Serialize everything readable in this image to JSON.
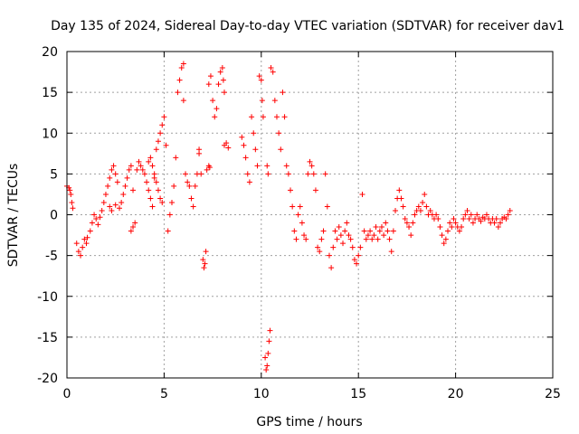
{
  "chart_data": {
    "type": "scatter",
    "title": "Day 135 of 2024, Sidereal Day-to-day VTEC variation (SDTVAR) for receiver dav1",
    "xlabel": "GPS time / hours",
    "ylabel": "SDTVAR / TECUs",
    "xlim": [
      0,
      25
    ],
    "ylim": [
      -20,
      20
    ],
    "xticks": [
      0,
      5,
      10,
      15,
      20,
      25
    ],
    "yticks": [
      -20,
      -15,
      -10,
      -5,
      0,
      5,
      10,
      15,
      20
    ],
    "grid": true,
    "marker": "+",
    "color": "#ff0000",
    "series": [
      {
        "name": "SDTVAR",
        "points": [
          [
            0.0,
            3.5
          ],
          [
            0.1,
            3.3
          ],
          [
            0.15,
            3.0
          ],
          [
            0.2,
            2.5
          ],
          [
            0.25,
            1.5
          ],
          [
            0.3,
            0.8
          ],
          [
            0.5,
            -3.5
          ],
          [
            0.6,
            -4.5
          ],
          [
            0.7,
            -5.0
          ],
          [
            0.8,
            -4.0
          ],
          [
            0.9,
            -3.0
          ],
          [
            1.0,
            -3.5
          ],
          [
            1.05,
            -2.8
          ],
          [
            1.2,
            -2.0
          ],
          [
            1.3,
            -1.0
          ],
          [
            1.4,
            0.0
          ],
          [
            1.5,
            -0.5
          ],
          [
            1.6,
            -1.2
          ],
          [
            1.7,
            -0.3
          ],
          [
            1.8,
            0.5
          ],
          [
            1.9,
            1.5
          ],
          [
            2.0,
            2.5
          ],
          [
            2.1,
            3.5
          ],
          [
            2.2,
            4.5
          ],
          [
            2.3,
            5.5
          ],
          [
            2.4,
            6.0
          ],
          [
            2.5,
            5.0
          ],
          [
            2.6,
            4.0
          ],
          [
            2.2,
            1.0
          ],
          [
            2.3,
            0.5
          ],
          [
            2.5,
            1.2
          ],
          [
            2.7,
            0.8
          ],
          [
            2.8,
            1.5
          ],
          [
            2.9,
            2.5
          ],
          [
            3.0,
            3.5
          ],
          [
            3.1,
            4.5
          ],
          [
            3.2,
            5.5
          ],
          [
            3.3,
            6.0
          ],
          [
            3.4,
            3.0
          ],
          [
            3.3,
            -2.0
          ],
          [
            3.4,
            -1.5
          ],
          [
            3.5,
            -1.0
          ],
          [
            3.6,
            5.5
          ],
          [
            3.7,
            6.5
          ],
          [
            3.8,
            6.0
          ],
          [
            3.9,
            5.5
          ],
          [
            4.0,
            5.0
          ],
          [
            4.1,
            4.0
          ],
          [
            4.2,
            6.5
          ],
          [
            4.3,
            7.0
          ],
          [
            4.4,
            6.0
          ],
          [
            4.5,
            5.0
          ],
          [
            4.6,
            4.0
          ],
          [
            4.7,
            3.0
          ],
          [
            4.8,
            2.0
          ],
          [
            4.9,
            1.5
          ],
          [
            4.2,
            3.0
          ],
          [
            4.3,
            2.0
          ],
          [
            4.4,
            1.0
          ],
          [
            4.5,
            4.5
          ],
          [
            4.6,
            8.0
          ],
          [
            4.7,
            9.0
          ],
          [
            4.8,
            10.0
          ],
          [
            4.9,
            11.0
          ],
          [
            5.0,
            12.0
          ],
          [
            5.1,
            8.5
          ],
          [
            5.2,
            -2.0
          ],
          [
            5.3,
            0.0
          ],
          [
            5.4,
            1.5
          ],
          [
            5.5,
            3.5
          ],
          [
            5.6,
            7.0
          ],
          [
            5.7,
            15.0
          ],
          [
            5.8,
            16.5
          ],
          [
            5.9,
            18.0
          ],
          [
            6.0,
            18.5
          ],
          [
            6.0,
            14.0
          ],
          [
            6.1,
            5.0
          ],
          [
            6.2,
            4.0
          ],
          [
            6.3,
            3.5
          ],
          [
            6.4,
            2.0
          ],
          [
            6.5,
            1.0
          ],
          [
            6.6,
            3.5
          ],
          [
            6.7,
            5.0
          ],
          [
            6.8,
            7.5
          ],
          [
            6.8,
            8.0
          ],
          [
            6.9,
            5.0
          ],
          [
            7.0,
            -5.5
          ],
          [
            7.05,
            -6.5
          ],
          [
            7.1,
            -6.0
          ],
          [
            7.15,
            -4.5
          ],
          [
            7.2,
            5.5
          ],
          [
            7.3,
            6.0
          ],
          [
            7.35,
            5.8
          ],
          [
            7.3,
            16.0
          ],
          [
            7.4,
            17.0
          ],
          [
            7.5,
            14.0
          ],
          [
            7.6,
            12.0
          ],
          [
            7.7,
            13.0
          ],
          [
            7.8,
            16.0
          ],
          [
            7.9,
            17.5
          ],
          [
            8.0,
            18.0
          ],
          [
            8.05,
            16.5
          ],
          [
            8.1,
            15.0
          ],
          [
            8.1,
            8.5
          ],
          [
            8.2,
            8.8
          ],
          [
            8.3,
            8.2
          ],
          [
            9.0,
            9.5
          ],
          [
            9.1,
            8.5
          ],
          [
            9.2,
            7.0
          ],
          [
            9.3,
            5.0
          ],
          [
            9.4,
            4.0
          ],
          [
            9.5,
            12.0
          ],
          [
            9.6,
            10.0
          ],
          [
            9.7,
            8.0
          ],
          [
            9.8,
            6.0
          ],
          [
            9.9,
            17.0
          ],
          [
            10.0,
            16.5
          ],
          [
            10.05,
            14.0
          ],
          [
            10.1,
            12.0
          ],
          [
            10.2,
            -17.5
          ],
          [
            10.25,
            -19.0
          ],
          [
            10.3,
            -18.5
          ],
          [
            10.35,
            -17.0
          ],
          [
            10.4,
            -15.5
          ],
          [
            10.45,
            -14.2
          ],
          [
            10.3,
            6.0
          ],
          [
            10.35,
            5.0
          ],
          [
            10.5,
            18.0
          ],
          [
            10.6,
            17.5
          ],
          [
            10.7,
            14.0
          ],
          [
            10.8,
            12.0
          ],
          [
            10.9,
            10.0
          ],
          [
            11.0,
            8.0
          ],
          [
            11.1,
            15.0
          ],
          [
            11.2,
            12.0
          ],
          [
            11.3,
            6.0
          ],
          [
            11.4,
            5.0
          ],
          [
            11.5,
            3.0
          ],
          [
            11.6,
            1.0
          ],
          [
            11.7,
            -2.0
          ],
          [
            11.8,
            -3.0
          ],
          [
            11.9,
            0.0
          ],
          [
            12.0,
            1.0
          ],
          [
            12.1,
            -1.0
          ],
          [
            12.2,
            -2.5
          ],
          [
            12.3,
            -3.0
          ],
          [
            12.4,
            5.0
          ],
          [
            12.5,
            6.5
          ],
          [
            12.6,
            6.0
          ],
          [
            12.7,
            5.0
          ],
          [
            12.8,
            3.0
          ],
          [
            12.9,
            -4.0
          ],
          [
            13.0,
            -4.5
          ],
          [
            13.1,
            -3.0
          ],
          [
            13.2,
            -2.0
          ],
          [
            13.3,
            5.0
          ],
          [
            13.4,
            1.0
          ],
          [
            13.5,
            -5.0
          ],
          [
            13.6,
            -6.5
          ],
          [
            13.7,
            -4.0
          ],
          [
            13.8,
            -2.0
          ],
          [
            13.9,
            -3.0
          ],
          [
            14.0,
            -1.5
          ],
          [
            14.1,
            -2.5
          ],
          [
            14.2,
            -3.5
          ],
          [
            14.3,
            -2.0
          ],
          [
            14.4,
            -1.0
          ],
          [
            14.5,
            -2.5
          ],
          [
            14.6,
            -3.0
          ],
          [
            14.7,
            -4.0
          ],
          [
            14.8,
            -5.5
          ],
          [
            14.9,
            -6.0
          ],
          [
            15.0,
            -5.0
          ],
          [
            15.1,
            -4.0
          ],
          [
            15.2,
            2.5
          ],
          [
            15.3,
            -2.0
          ],
          [
            15.4,
            -3.0
          ],
          [
            15.5,
            -2.5
          ],
          [
            15.6,
            -2.0
          ],
          [
            15.7,
            -3.0
          ],
          [
            15.8,
            -2.5
          ],
          [
            15.9,
            -1.5
          ],
          [
            16.0,
            -3.0
          ],
          [
            16.1,
            -2.0
          ],
          [
            16.2,
            -1.5
          ],
          [
            16.3,
            -2.5
          ],
          [
            16.4,
            -1.0
          ],
          [
            16.5,
            -2.0
          ],
          [
            16.6,
            -3.0
          ],
          [
            16.7,
            -4.5
          ],
          [
            16.8,
            -2.0
          ],
          [
            16.9,
            0.5
          ],
          [
            17.0,
            2.0
          ],
          [
            17.1,
            3.0
          ],
          [
            17.2,
            2.0
          ],
          [
            17.3,
            1.0
          ],
          [
            17.4,
            -0.5
          ],
          [
            17.5,
            -1.0
          ],
          [
            17.6,
            -1.5
          ],
          [
            17.7,
            -2.5
          ],
          [
            17.8,
            -1.0
          ],
          [
            17.9,
            0.0
          ],
          [
            18.0,
            0.5
          ],
          [
            18.1,
            1.0
          ],
          [
            18.2,
            0.5
          ],
          [
            18.3,
            1.5
          ],
          [
            18.4,
            2.5
          ],
          [
            18.5,
            1.0
          ],
          [
            18.6,
            0.0
          ],
          [
            18.7,
            0.5
          ],
          [
            18.8,
            0.0
          ],
          [
            18.9,
            -0.5
          ],
          [
            19.0,
            0.0
          ],
          [
            19.1,
            -0.5
          ],
          [
            19.2,
            -1.5
          ],
          [
            19.3,
            -2.5
          ],
          [
            19.4,
            -3.5
          ],
          [
            19.5,
            -3.0
          ],
          [
            19.6,
            -2.0
          ],
          [
            19.7,
            -1.0
          ],
          [
            19.8,
            -1.5
          ],
          [
            19.9,
            -0.5
          ],
          [
            20.0,
            -1.0
          ],
          [
            20.1,
            -1.5
          ],
          [
            20.2,
            -2.0
          ],
          [
            20.3,
            -1.5
          ],
          [
            20.4,
            -0.5
          ],
          [
            20.5,
            0.0
          ],
          [
            20.6,
            0.5
          ],
          [
            20.7,
            -0.5
          ],
          [
            20.8,
            0.0
          ],
          [
            20.9,
            -1.0
          ],
          [
            21.0,
            -0.5
          ],
          [
            21.1,
            0.0
          ],
          [
            21.2,
            -0.5
          ],
          [
            21.3,
            -0.8
          ],
          [
            21.4,
            -0.3
          ],
          [
            21.5,
            -0.5
          ],
          [
            21.6,
            0.0
          ],
          [
            21.7,
            -0.5
          ],
          [
            21.8,
            -1.0
          ],
          [
            21.9,
            -0.5
          ],
          [
            22.0,
            -1.0
          ],
          [
            22.1,
            -0.5
          ],
          [
            22.2,
            -1.5
          ],
          [
            22.3,
            -1.0
          ],
          [
            22.4,
            -0.5
          ],
          [
            22.5,
            -0.3
          ],
          [
            22.6,
            -0.5
          ],
          [
            22.7,
            0.0
          ],
          [
            22.8,
            0.5
          ]
        ]
      }
    ]
  }
}
